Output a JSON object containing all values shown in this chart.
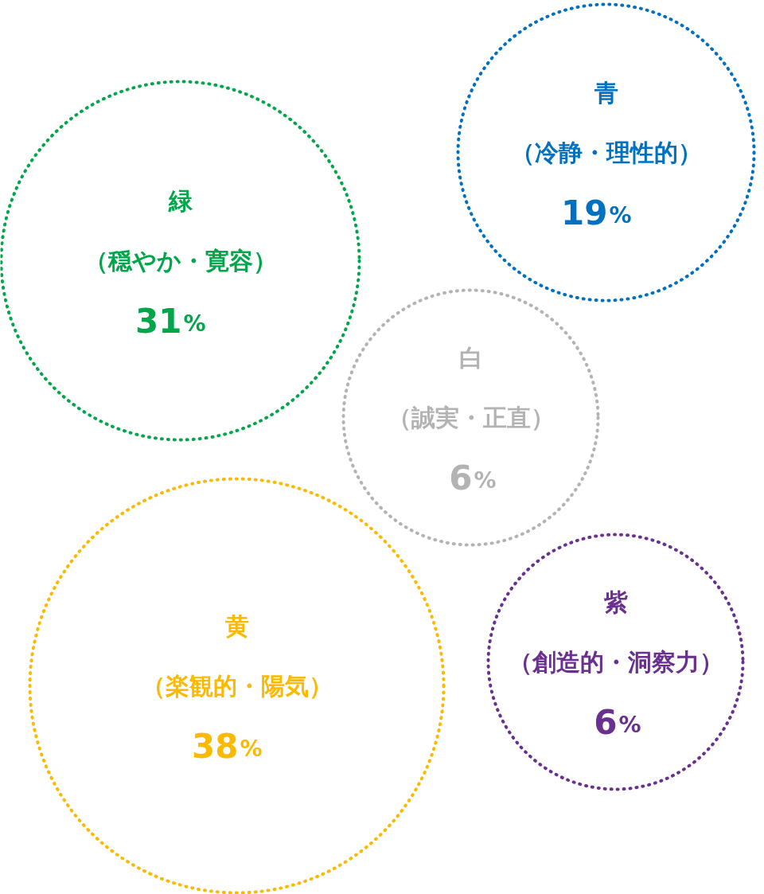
{
  "chart_data": {
    "type": "other",
    "categories": [
      "緑",
      "青",
      "白",
      "黄",
      "紫"
    ],
    "annotations": [
      "（穏やか・寛容）",
      "（冷静・理性的）",
      "（誠実・正直）",
      "（楽観的・陽気）",
      "（創造的・洞察力）"
    ],
    "values": [
      31,
      19,
      6,
      38,
      6
    ],
    "value_labels": [
      "31%",
      "19%",
      "6%",
      "38%",
      "6%"
    ],
    "colors": [
      "#00a74a",
      "#0070c0",
      "#b3b3b3",
      "#fbb900",
      "#6a3090"
    ]
  }
}
